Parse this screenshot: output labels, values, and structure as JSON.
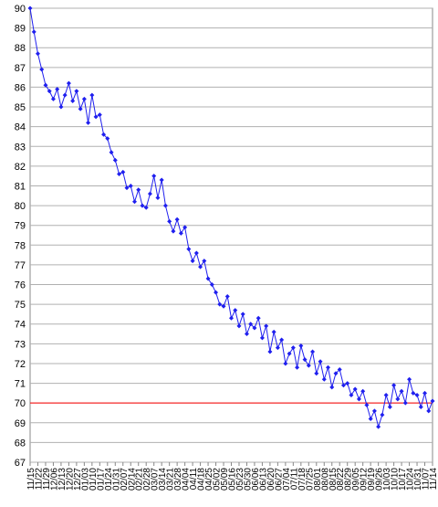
{
  "chart_data": {
    "type": "line",
    "categories": [
      "11/15",
      null,
      "11/22",
      null,
      "11/29",
      null,
      "12/06",
      null,
      "12/13",
      null,
      "12/20",
      null,
      "12/27",
      null,
      "01/03",
      null,
      "01/10",
      null,
      "01/17",
      null,
      "01/24",
      null,
      "01/31",
      null,
      "02/07",
      null,
      "02/14",
      null,
      "02/21",
      null,
      "02/28",
      null,
      "03/07",
      null,
      "03/14",
      null,
      "03/21",
      null,
      "03/28",
      null,
      "04/04",
      null,
      "04/11",
      null,
      "04/18",
      null,
      "04/25",
      null,
      "05/02",
      null,
      "05/09",
      null,
      "05/16",
      null,
      "05/23",
      null,
      "05/30",
      null,
      "06/06",
      null,
      "06/13",
      null,
      "06/20",
      null,
      "06/27",
      null,
      "07/04",
      null,
      "07/11",
      null,
      "07/18",
      null,
      "07/25",
      null,
      "08/01",
      null,
      "08/08",
      null,
      "08/15",
      null,
      "08/22",
      null,
      "08/29",
      null,
      "09/05",
      null,
      "09/12",
      null,
      "09/19",
      null,
      "09/26",
      null,
      "10/03",
      null,
      "10/10",
      null,
      "10/17",
      null,
      "10/24",
      null,
      "10/31",
      null,
      "11/07",
      null,
      "11/14"
    ],
    "series": [
      {
        "color": "#1f1fef",
        "values": [
          90.0,
          88.8,
          87.7,
          86.9,
          86.1,
          85.8,
          85.4,
          85.9,
          85.0,
          85.6,
          86.2,
          85.3,
          85.8,
          84.9,
          85.4,
          84.2,
          85.6,
          84.5,
          84.6,
          83.6,
          83.4,
          82.7,
          82.3,
          81.6,
          81.7,
          80.9,
          81.0,
          80.2,
          80.8,
          80.0,
          79.9,
          80.6,
          81.5,
          80.4,
          81.3,
          80.0,
          79.2,
          78.7,
          79.3,
          78.6,
          78.9,
          77.8,
          77.2,
          77.6,
          76.9,
          77.2,
          76.3,
          76.0,
          75.6,
          75.0,
          74.9,
          75.4,
          74.3,
          74.7,
          73.9,
          74.5,
          73.5,
          74.0,
          73.8,
          74.3,
          73.3,
          73.9,
          72.6,
          73.6,
          72.8,
          73.2,
          72.0,
          72.5,
          72.8,
          71.8,
          72.9,
          72.2,
          71.9,
          72.6,
          71.5,
          72.1,
          71.2,
          71.8,
          70.8,
          71.5,
          71.7,
          70.9,
          71.0,
          70.4,
          70.7,
          70.2,
          70.6,
          69.9,
          69.2,
          69.6,
          68.8,
          69.4,
          70.4,
          69.8,
          70.9,
          70.2,
          70.6,
          70.0,
          71.2,
          70.5,
          70.4,
          69.8,
          70.5,
          69.6,
          70.1
        ]
      }
    ],
    "reference_line": {
      "value": 70,
      "color": "#ff0000"
    },
    "ylim": [
      67,
      90
    ],
    "yticks": [
      67,
      68,
      69,
      70,
      71,
      72,
      73,
      74,
      75,
      76,
      77,
      78,
      79,
      80,
      81,
      82,
      83,
      84,
      85,
      86,
      87,
      88,
      89,
      90
    ],
    "grid": true
  }
}
